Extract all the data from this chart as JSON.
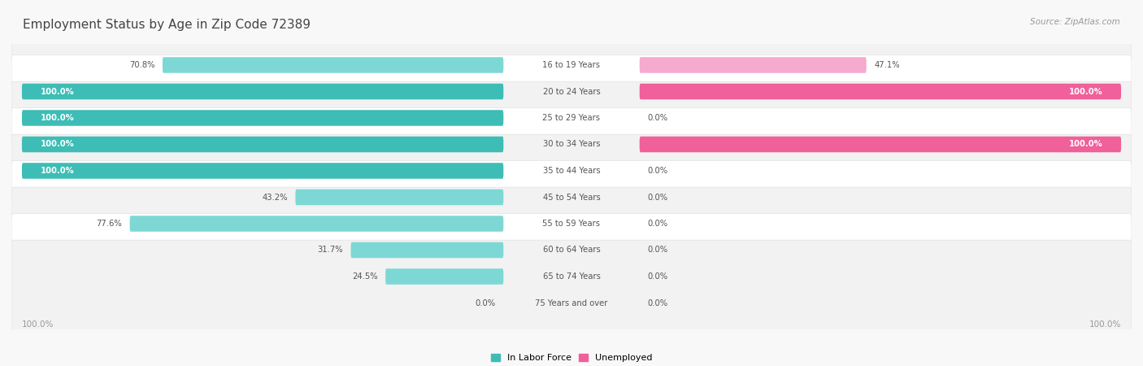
{
  "title": "Employment Status by Age in Zip Code 72389",
  "source": "Source: ZipAtlas.com",
  "categories": [
    "16 to 19 Years",
    "20 to 24 Years",
    "25 to 29 Years",
    "30 to 34 Years",
    "35 to 44 Years",
    "45 to 54 Years",
    "55 to 59 Years",
    "60 to 64 Years",
    "65 to 74 Years",
    "75 Years and over"
  ],
  "labor_force": [
    70.8,
    100.0,
    100.0,
    100.0,
    100.0,
    43.2,
    77.6,
    31.7,
    24.5,
    0.0
  ],
  "unemployed": [
    47.1,
    100.0,
    0.0,
    100.0,
    0.0,
    0.0,
    0.0,
    0.0,
    0.0,
    0.0
  ],
  "labor_color_strong": "#3DBDB5",
  "labor_color_weak": "#7DD8D5",
  "unemployed_color_strong": "#F0609A",
  "unemployed_color_weak": "#F5AACE",
  "row_color_odd": "#FFFFFF",
  "row_color_even": "#F2F2F2",
  "bg_color": "#F8F8F8",
  "title_color": "#444444",
  "label_color": "#555555",
  "source_color": "#999999",
  "axis_label_color": "#999999",
  "figsize": [
    14.06,
    4.5
  ],
  "dpi": 100
}
